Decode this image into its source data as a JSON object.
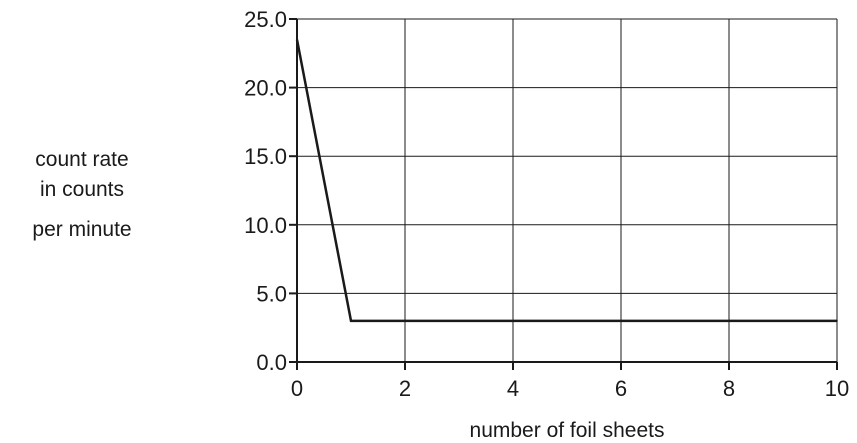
{
  "chart_data": {
    "type": "line",
    "title": "",
    "xlabel": "number of foil sheets",
    "ylabel_lines": [
      "count rate",
      "in counts",
      "per minute"
    ],
    "xlim": [
      0,
      10
    ],
    "ylim": [
      0,
      25
    ],
    "xticks": [
      0,
      2,
      4,
      6,
      8,
      10
    ],
    "xtick_labels": [
      "0",
      "2",
      "4",
      "6",
      "8",
      "10"
    ],
    "yticks": [
      0,
      5,
      10,
      15,
      20,
      25
    ],
    "ytick_labels": [
      "0.0",
      "5.0",
      "10.0",
      "15.0",
      "20.0",
      "25.0"
    ],
    "grid": true,
    "series": [
      {
        "x": [
          0,
          1,
          2,
          3,
          4,
          5,
          6,
          7,
          8,
          9,
          10
        ],
        "y": [
          23.5,
          3.0,
          3.0,
          3.0,
          3.0,
          3.0,
          3.0,
          3.0,
          3.0,
          3.0,
          3.0
        ]
      }
    ],
    "colors": {
      "line": "#1a1a1a",
      "grid": "#1a1a1a",
      "axis": "#1a1a1a"
    }
  }
}
